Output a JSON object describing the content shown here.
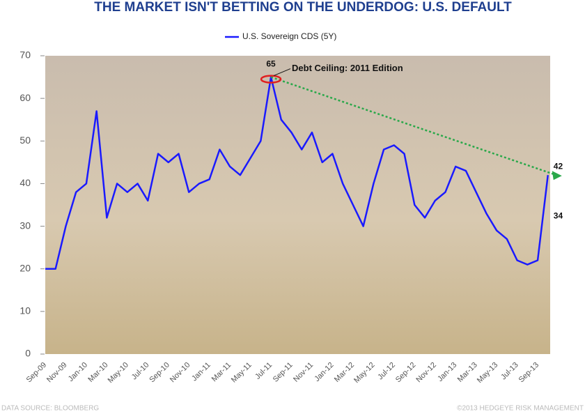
{
  "chart_data": {
    "type": "line",
    "title": "THE MARKET ISN'T BETTING ON THE UNDERDOG: U.S. DEFAULT",
    "categories": [
      "Sep-09",
      null,
      "Nov-09",
      null,
      "Jan-10",
      null,
      "Mar-10",
      null,
      "May-10",
      null,
      "Jul-10",
      null,
      "Sep-10",
      null,
      "Nov-10",
      null,
      "Jan-11",
      null,
      "Mar-11",
      null,
      "May-11",
      null,
      "Jul-11",
      null,
      "Sep-11",
      null,
      "Nov-11",
      null,
      "Jan-12",
      null,
      "Mar-12",
      null,
      "May-12",
      null,
      "Jul-12",
      null,
      "Sep-12",
      null,
      "Nov-12",
      null,
      "Jan-13",
      null,
      "Mar-13",
      null,
      "May-13",
      null,
      "Jul-13",
      null,
      "Sep-13",
      null
    ],
    "series": [
      {
        "name": "U.S. Sovereign CDS (5Y)",
        "color": "#1a1aff",
        "values": [
          20,
          20,
          30,
          38,
          40,
          57,
          32,
          40,
          38,
          40,
          36,
          47,
          45,
          47,
          38,
          40,
          41,
          48,
          44,
          42,
          46,
          50,
          65,
          55,
          52,
          48,
          52,
          45,
          47,
          40,
          35,
          30,
          40,
          48,
          49,
          47,
          35,
          32,
          36,
          38,
          44,
          43,
          38,
          33,
          29,
          27,
          22,
          21,
          22,
          42
        ]
      }
    ],
    "ylim": [
      0,
      70
    ],
    "yticks": [
      0,
      10,
      20,
      30,
      40,
      50,
      60,
      70
    ],
    "annotations": [
      {
        "value": 65
      },
      {
        "value": 42
      },
      {
        "value": 34
      },
      {
        "text": "Debt Ceiling: 2011 Edition"
      }
    ],
    "source": "DATA SOURCE: BLOOMBERG",
    "copyright": "©2013 HEDGEYE RISK MANAGEMENT"
  }
}
